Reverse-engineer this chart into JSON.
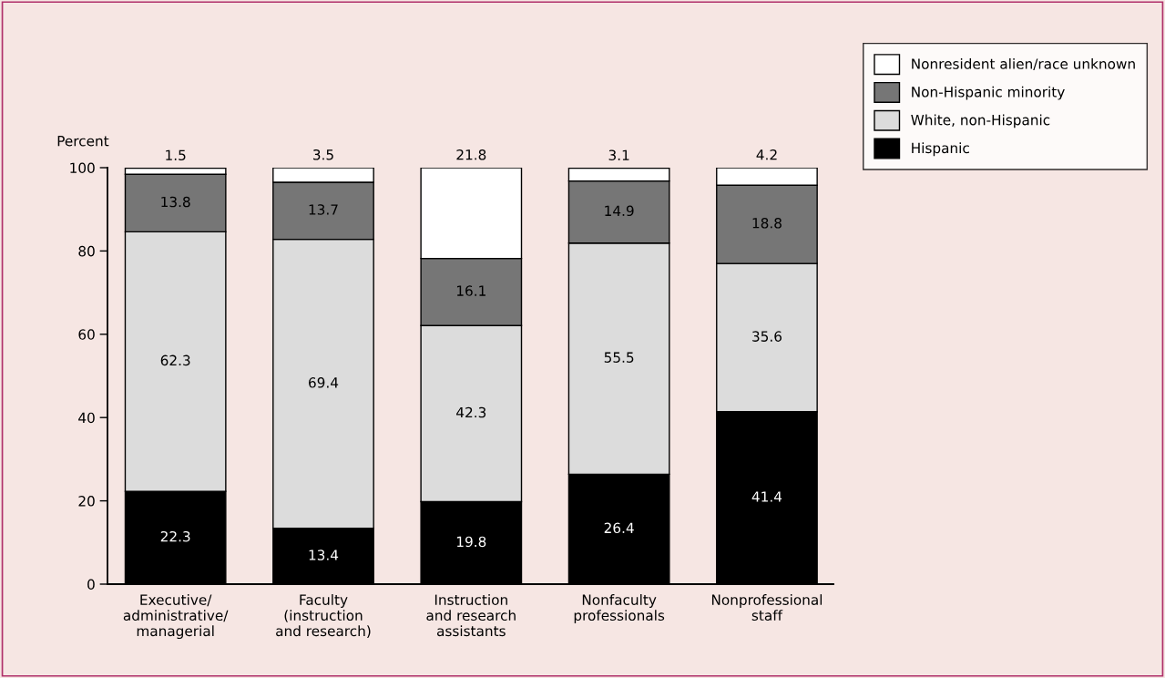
{
  "chart_data": {
    "type": "bar",
    "stacked": true,
    "ylabel": "Percent",
    "categories": [
      "Executive/\nadministrative/\nmanagerial",
      "Faculty\n(instruction\nand research)",
      "Instruction\nand research\nassistants",
      "Nonfaculty\nprofessionals",
      "Nonprofessional\nstaff"
    ],
    "series": [
      {
        "name": "Hispanic",
        "color": "#000000",
        "values": [
          22.3,
          13.4,
          19.8,
          26.4,
          41.4
        ]
      },
      {
        "name": "White, non-Hispanic",
        "color": "#dcdcdc",
        "values": [
          62.3,
          69.4,
          42.3,
          55.5,
          35.6
        ]
      },
      {
        "name": "Non-Hispanic minority",
        "color": "#767676",
        "values": [
          13.8,
          13.7,
          16.1,
          14.9,
          18.8
        ]
      },
      {
        "name": "Nonresident alien/race unknown",
        "color": "#ffffff",
        "values": [
          1.5,
          3.5,
          21.8,
          3.1,
          4.2
        ]
      }
    ],
    "ylim": [
      0,
      100
    ],
    "yticks": [
      0,
      20,
      40,
      60,
      80,
      100
    ],
    "grid": false,
    "legend": "top right",
    "data_labels": true
  }
}
